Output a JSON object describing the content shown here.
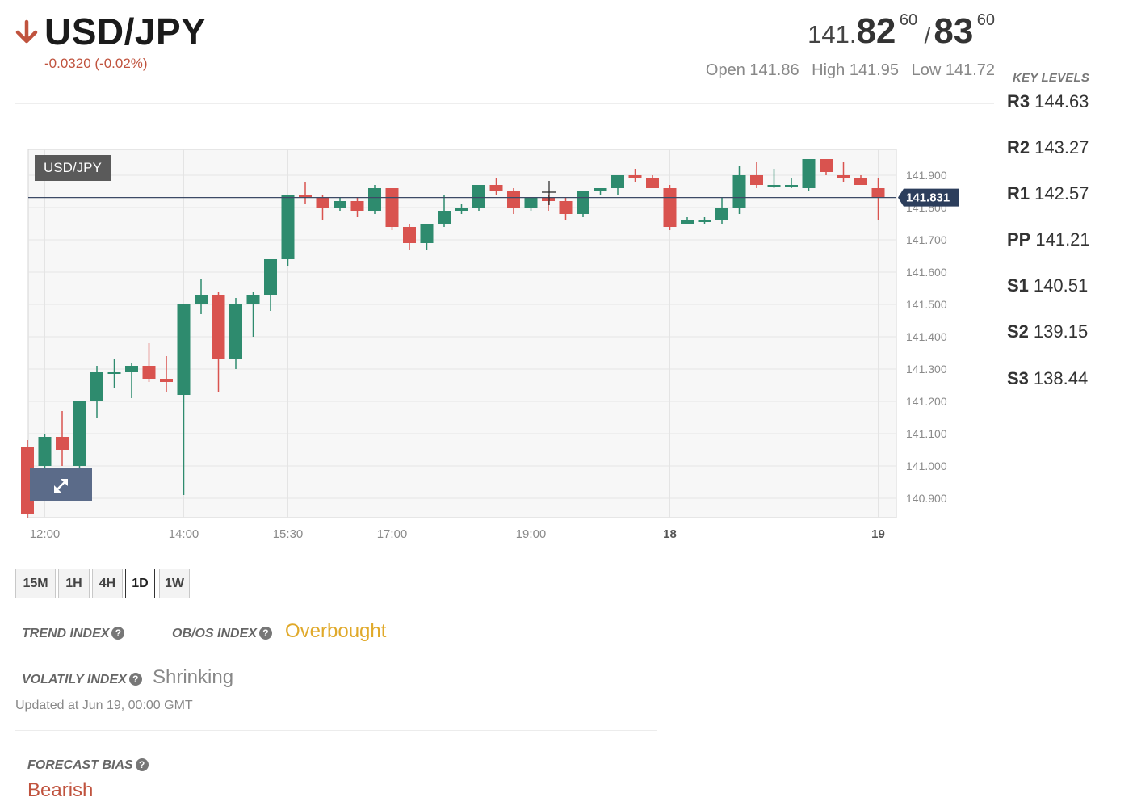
{
  "header": {
    "pair": "USD/JPY",
    "direction_icon": "arrow-down-icon",
    "change": "-0.0320 (-0.02%)",
    "bid": {
      "prefix": "141.",
      "big": "82",
      "sup": "60"
    },
    "separator": "/",
    "ask": {
      "big": "83",
      "sup": "60"
    },
    "open": "Open 141.86",
    "high": "High 141.95",
    "low": "Low 141.72"
  },
  "key_levels": {
    "title": "KEY LEVELS",
    "items": [
      {
        "name": "R3",
        "value": "144.63"
      },
      {
        "name": "R2",
        "value": "143.27"
      },
      {
        "name": "R1",
        "value": "142.57"
      },
      {
        "name": "PP",
        "value": "141.21"
      },
      {
        "name": "S1",
        "value": "140.51"
      },
      {
        "name": "S2",
        "value": "139.15"
      },
      {
        "name": "S3",
        "value": "138.44"
      }
    ]
  },
  "chart_badge": "USD/JPY",
  "expand_icon": "expand-icon",
  "chart_data": {
    "type": "candlestick",
    "ylim": [
      140.84,
      141.98
    ],
    "y_ticks": [
      "141.900",
      "141.800",
      "141.700",
      "141.600",
      "141.500",
      "141.400",
      "141.300",
      "141.200",
      "141.100",
      "141.000",
      "140.900"
    ],
    "x_ticks": [
      {
        "label": "12:00",
        "bold": false,
        "index": 1
      },
      {
        "label": "14:00",
        "bold": false,
        "index": 9
      },
      {
        "label": "15:30",
        "bold": false,
        "index": 15
      },
      {
        "label": "17:00",
        "bold": false,
        "index": 21
      },
      {
        "label": "19:00",
        "bold": false,
        "index": 29
      },
      {
        "label": "18",
        "bold": true,
        "index": 37
      },
      {
        "label": "19",
        "bold": true,
        "index": 49
      }
    ],
    "current_price": "141.831",
    "current_value": 141.831,
    "colors": {
      "up": "#2e8b6e",
      "down": "#d9534f"
    },
    "candles": [
      {
        "o": 141.06,
        "h": 141.08,
        "l": 140.84,
        "c": 140.85
      },
      {
        "o": 141.0,
        "h": 141.1,
        "l": 140.97,
        "c": 141.09
      },
      {
        "o": 141.09,
        "h": 141.17,
        "l": 141.0,
        "c": 141.05
      },
      {
        "o": 141.0,
        "h": 141.2,
        "l": 140.97,
        "c": 141.2
      },
      {
        "o": 141.2,
        "h": 141.31,
        "l": 141.15,
        "c": 141.29
      },
      {
        "o": 141.29,
        "h": 141.33,
        "l": 141.24,
        "c": 141.29
      },
      {
        "o": 141.29,
        "h": 141.32,
        "l": 141.21,
        "c": 141.31
      },
      {
        "o": 141.31,
        "h": 141.38,
        "l": 141.26,
        "c": 141.27
      },
      {
        "o": 141.27,
        "h": 141.34,
        "l": 141.23,
        "c": 141.26
      },
      {
        "o": 141.22,
        "h": 141.5,
        "l": 140.91,
        "c": 141.5
      },
      {
        "o": 141.5,
        "h": 141.58,
        "l": 141.47,
        "c": 141.53
      },
      {
        "o": 141.53,
        "h": 141.54,
        "l": 141.23,
        "c": 141.33
      },
      {
        "o": 141.33,
        "h": 141.52,
        "l": 141.3,
        "c": 141.5
      },
      {
        "o": 141.5,
        "h": 141.54,
        "l": 141.4,
        "c": 141.53
      },
      {
        "o": 141.53,
        "h": 141.63,
        "l": 141.48,
        "c": 141.64
      },
      {
        "o": 141.64,
        "h": 141.84,
        "l": 141.62,
        "c": 141.84
      },
      {
        "o": 141.84,
        "h": 141.88,
        "l": 141.81,
        "c": 141.83
      },
      {
        "o": 141.83,
        "h": 141.84,
        "l": 141.76,
        "c": 141.8
      },
      {
        "o": 141.8,
        "h": 141.83,
        "l": 141.79,
        "c": 141.82
      },
      {
        "o": 141.82,
        "h": 141.83,
        "l": 141.77,
        "c": 141.79
      },
      {
        "o": 141.79,
        "h": 141.87,
        "l": 141.78,
        "c": 141.86
      },
      {
        "o": 141.86,
        "h": 141.86,
        "l": 141.73,
        "c": 141.74
      },
      {
        "o": 141.74,
        "h": 141.75,
        "l": 141.67,
        "c": 141.69
      },
      {
        "o": 141.69,
        "h": 141.75,
        "l": 141.67,
        "c": 141.75
      },
      {
        "o": 141.75,
        "h": 141.84,
        "l": 141.74,
        "c": 141.79
      },
      {
        "o": 141.79,
        "h": 141.81,
        "l": 141.78,
        "c": 141.8
      },
      {
        "o": 141.8,
        "h": 141.87,
        "l": 141.79,
        "c": 141.87
      },
      {
        "o": 141.87,
        "h": 141.89,
        "l": 141.84,
        "c": 141.85
      },
      {
        "o": 141.85,
        "h": 141.86,
        "l": 141.78,
        "c": 141.8
      },
      {
        "o": 141.8,
        "h": 141.83,
        "l": 141.79,
        "c": 141.83
      },
      {
        "o": 141.83,
        "h": 141.84,
        "l": 141.79,
        "c": 141.82
      },
      {
        "o": 141.82,
        "h": 141.83,
        "l": 141.76,
        "c": 141.78
      },
      {
        "o": 141.78,
        "h": 141.85,
        "l": 141.77,
        "c": 141.85
      },
      {
        "o": 141.85,
        "h": 141.86,
        "l": 141.84,
        "c": 141.86
      },
      {
        "o": 141.86,
        "h": 141.9,
        "l": 141.84,
        "c": 141.9
      },
      {
        "o": 141.9,
        "h": 141.92,
        "l": 141.88,
        "c": 141.89
      },
      {
        "o": 141.89,
        "h": 141.9,
        "l": 141.86,
        "c": 141.86
      },
      {
        "o": 141.86,
        "h": 141.87,
        "l": 141.73,
        "c": 141.74
      },
      {
        "o": 141.75,
        "h": 141.77,
        "l": 141.75,
        "c": 141.76
      },
      {
        "o": 141.76,
        "h": 141.77,
        "l": 141.75,
        "c": 141.76
      },
      {
        "o": 141.76,
        "h": 141.83,
        "l": 141.75,
        "c": 141.8
      },
      {
        "o": 141.8,
        "h": 141.93,
        "l": 141.78,
        "c": 141.9
      },
      {
        "o": 141.9,
        "h": 141.94,
        "l": 141.86,
        "c": 141.87
      },
      {
        "o": 141.87,
        "h": 141.92,
        "l": 141.86,
        "c": 141.87
      },
      {
        "o": 141.87,
        "h": 141.89,
        "l": 141.86,
        "c": 141.87
      },
      {
        "o": 141.86,
        "h": 141.95,
        "l": 141.85,
        "c": 141.95
      },
      {
        "o": 141.95,
        "h": 141.95,
        "l": 141.9,
        "c": 141.91
      },
      {
        "o": 141.9,
        "h": 141.94,
        "l": 141.88,
        "c": 141.89
      },
      {
        "o": 141.89,
        "h": 141.9,
        "l": 141.87,
        "c": 141.87
      },
      {
        "o": 141.86,
        "h": 141.89,
        "l": 141.76,
        "c": 141.83
      }
    ]
  },
  "timeframes": {
    "items": [
      "15M",
      "1H",
      "4H",
      "1D",
      "1W"
    ],
    "active": "1D"
  },
  "indicators": {
    "trend_label": "TREND INDEX",
    "obos_label": "OB/OS INDEX",
    "obos_value": "Overbought",
    "vol_label": "VOLATILY INDEX",
    "vol_value": "Shrinking",
    "updated": "Updated at Jun 19, 00:00 GMT",
    "bias_label": "FORECAST BIAS",
    "bias_value": "Bearish",
    "help_icon": "help-icon",
    "help_glyph": "?"
  }
}
